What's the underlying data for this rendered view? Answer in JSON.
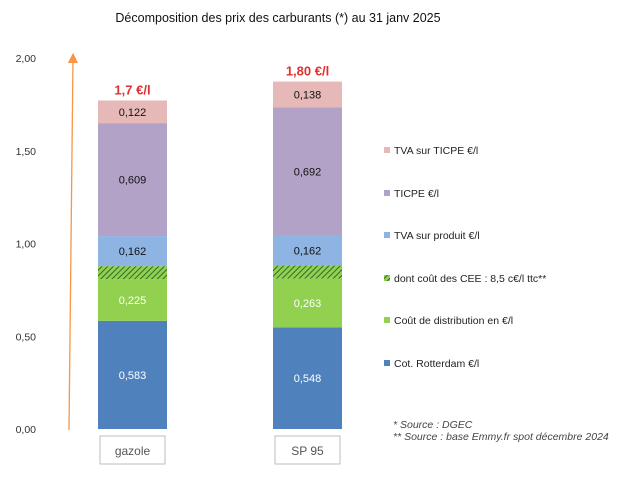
{
  "chart_data": {
    "type": "bar",
    "stacked": true,
    "title": "Décomposition des prix des carburants (*) au 31 janv 2025",
    "categories": [
      "gazole",
      "SP 95"
    ],
    "ylim": [
      0,
      2.0
    ],
    "yticks": [
      "0,00",
      "0,50",
      "1,00",
      "1,50",
      "2,00"
    ],
    "grid": false,
    "legend_position": "right",
    "series": [
      {
        "name": "Cot. Rotterdam €/l",
        "values": [
          0.583,
          0.548
        ],
        "labels": [
          "0,583",
          "0,548"
        ],
        "color": "#4f81bd",
        "label_color": "#ffffff"
      },
      {
        "name": "Coût de distribution en €/l",
        "values": [
          0.225,
          0.263
        ],
        "labels": [
          "0,225",
          "0,263"
        ],
        "color": "#92d050",
        "label_color": "#ffffff"
      },
      {
        "name": "dont coût des CEE : 8,5 c€/l ttc**",
        "values": [
          0.07,
          0.07
        ],
        "labels": [
          "",
          ""
        ],
        "color": "#92d050",
        "hatched": true,
        "label_color": "#ffffff"
      },
      {
        "name": "TVA sur produit €/l",
        "values": [
          0.162,
          0.162
        ],
        "labels": [
          "0,162",
          "0,162"
        ],
        "color": "#8db4e2",
        "label_color": "#111111"
      },
      {
        "name": "TICPE €/l",
        "values": [
          0.609,
          0.692
        ],
        "labels": [
          "0,609",
          "0,692"
        ],
        "color": "#b3a2c7",
        "label_color": "#111111"
      },
      {
        "name": "TVA sur TICPE €/l",
        "values": [
          0.122,
          0.138
        ],
        "labels": [
          "0,122",
          "0,138"
        ],
        "color": "#e6b9b8",
        "label_color": "#111111"
      }
    ],
    "totals": [
      "1,7 €/l",
      "1,80 €/l"
    ],
    "notes": [
      "* Source : DGEC",
      "** Source : base Emmy.fr spot décembre 2024"
    ],
    "colors": {
      "arrow": "#f79646",
      "total": "#e03030",
      "hatch": "#2e6b2e"
    }
  }
}
